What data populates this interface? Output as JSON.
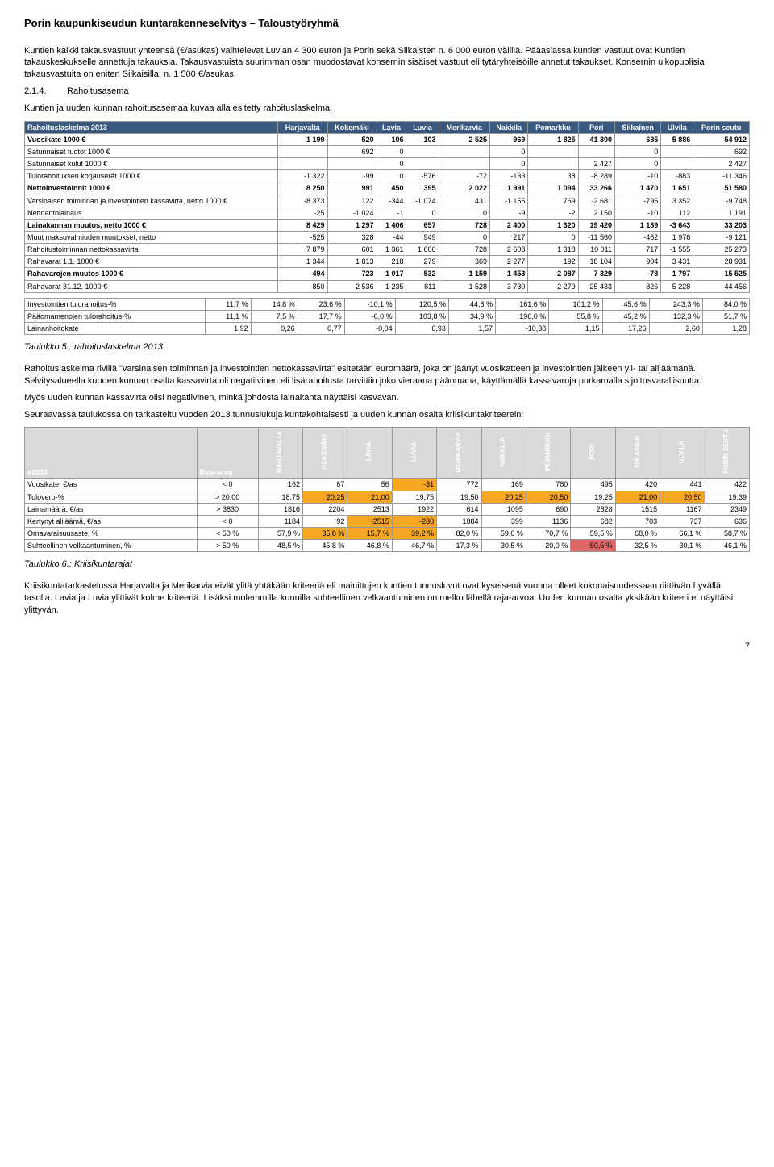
{
  "docTitle": "Porin kaupunkiseudun kuntarakenneselvitys – Taloustyöryhmä",
  "intro1": "Kuntien kaikki takausvastuut yhteensä (€/asukas) vaihtelevat Luvian 4 300 euron ja Porin sekä Siikaisten n. 6 000 euron välillä. Pääasiassa kuntien vastuut ovat Kuntien takauskeskukselle annettuja takauksia. Takausvastuista suurimman osan muodostavat konsernin sisäiset vastuut eli tytäryhteisöille annetut takaukset. Konsernin ulkopuolisia takausvastuita on eniten Siikaisilla, n. 1 500 €/asukas.",
  "sectionNum": "2.1.4.",
  "sectionTitle": "Rahoitusasema",
  "intro2": "Kuntien ja uuden kunnan rahoitusasemaa kuvaa alla esitetty rahoituslaskelma.",
  "table1": {
    "headers": [
      "Rahoituslaskelma 2013",
      "Harjavalta",
      "Kokemäki",
      "Lavia",
      "Luvia",
      "Merikarvia",
      "Nakkila",
      "Pomarkku",
      "Pori",
      "Siikainen",
      "Ulvila",
      "Porin seutu"
    ],
    "rows": [
      {
        "label": "Vuosikate 1000 €",
        "cells": [
          "1 199",
          "520",
          "106",
          "-103",
          "2 525",
          "969",
          "1 825",
          "41 300",
          "685",
          "5 886",
          "54 912"
        ],
        "bold": true
      },
      {
        "label": "Satunnaiset tuotot 1000 €",
        "cells": [
          "",
          "692",
          "0",
          "",
          "",
          "0",
          "",
          "",
          "0",
          "",
          "692"
        ]
      },
      {
        "label": "Satunnaiset kulut 1000 €",
        "cells": [
          "",
          "",
          "0",
          "",
          "",
          "0",
          "",
          "2 427",
          "0",
          "",
          "2 427"
        ]
      },
      {
        "label": "Tulorahoituksen korjauserät 1000 €",
        "cells": [
          "-1 322",
          "-99",
          "0",
          "-576",
          "-72",
          "-133",
          "38",
          "-8 289",
          "-10",
          "-883",
          "-11 346"
        ]
      },
      {
        "label": "Nettoinvestoinnit 1000 €",
        "cells": [
          "8 250",
          "991",
          "450",
          "395",
          "2 022",
          "1 991",
          "1 094",
          "33 266",
          "1 470",
          "1 651",
          "51 580"
        ],
        "bold": true
      },
      {
        "label": "Varsinaisen toiminnan ja investointien kassavirta, netto 1000 €",
        "cells": [
          "-8 373",
          "122",
          "-344",
          "-1 074",
          "431",
          "-1 155",
          "769",
          "-2 681",
          "-795",
          "3 352",
          "-9 748"
        ]
      },
      {
        "label": "Nettoantolainaus",
        "cells": [
          "-25",
          "-1 024",
          "-1",
          "0",
          "0",
          "-9",
          "-2",
          "2 150",
          "-10",
          "112",
          "1 191"
        ]
      },
      {
        "label": "Lainakannan muutos, netto 1000 €",
        "cells": [
          "8 429",
          "1 297",
          "1 406",
          "657",
          "728",
          "2 400",
          "1 320",
          "19 420",
          "1 189",
          "-3 643",
          "33 203"
        ],
        "bold": true
      },
      {
        "label": "Muut maksuvalmiuden muutokset, netto",
        "cells": [
          "-525",
          "328",
          "-44",
          "949",
          "0",
          "217",
          "0",
          "-11 560",
          "-462",
          "1 976",
          "-9 121"
        ]
      },
      {
        "label": "Rahoitustoiminnan nettokassavirta",
        "cells": [
          "7 879",
          "601",
          "1 361",
          "1 606",
          "728",
          "2 608",
          "1 318",
          "10 011",
          "717",
          "-1 555",
          "25 273"
        ]
      },
      {
        "label": "Rahavarat 1.1. 1000 €",
        "cells": [
          "1 344",
          "1 813",
          "218",
          "279",
          "369",
          "2 277",
          "192",
          "18 104",
          "904",
          "3 431",
          "28 931"
        ]
      },
      {
        "label": "Rahavarojen muutos 1000 €",
        "cells": [
          "-494",
          "723",
          "1 017",
          "532",
          "1 159",
          "1 453",
          "2 087",
          "7 329",
          "-78",
          "1 797",
          "15 525"
        ],
        "bold": true
      },
      {
        "label": "Rahavarat 31.12. 1000 €",
        "cells": [
          "850",
          "2 536",
          "1 235",
          "811",
          "1 528",
          "3 730",
          "2 279",
          "25 433",
          "826",
          "5 228",
          "44 456"
        ]
      }
    ],
    "rows2": [
      {
        "label": "Investointien tulorahoitus-%",
        "cells": [
          "11,7 %",
          "14,8 %",
          "23,6 %",
          "-10,1 %",
          "120,5 %",
          "44,8 %",
          "161,6 %",
          "101,2 %",
          "45,6 %",
          "243,3 %",
          "84,0 %"
        ]
      },
      {
        "label": "Pääomamenojen tulorahoitus-%",
        "cells": [
          "11,1 %",
          "7,5 %",
          "17,7 %",
          "-6,0 %",
          "103,8 %",
          "34,9 %",
          "196,0 %",
          "55,8 %",
          "45,2 %",
          "132,3 %",
          "51,7 %"
        ]
      },
      {
        "label": "Lainanhoitokate",
        "cells": [
          "1,92",
          "0,26",
          "0,77",
          "-0,04",
          "6,93",
          "1,57",
          "-10,38",
          "1,15",
          "17,26",
          "2,60",
          "1,28"
        ]
      }
    ]
  },
  "caption1": "Taulukko 5.: rahoituslaskelma 2013",
  "para2": "Rahoituslaskelma rivillä \"varsinaisen toiminnan ja investointien nettokassavirta\" esitetään euromäärä, joka on jäänyt vuosikatteen ja investointien jälkeen yli- tai alijäämänä. Selvitysalueella kuuden kunnan osalta kassavirta oli negatiivinen eli lisärahoitusta tarvittiin joko vieraana pääomana, käyttämällä kassavaroja purkamalla sijoitusvarallisuutta.",
  "para3": "Myös uuden kunnan kassavirta olisi negatiivinen, minkä johdosta lainakanta näyttäisi kasvavan.",
  "para4": "Seuraavassa taulukossa on tarkasteltu vuoden 2013 tunnuslukuja kuntakohtaisesti ja uuden kunnan osalta kriisikuntakriteerein:",
  "table2": {
    "colHeads": [
      "e2013",
      "Raja-arvo",
      "HARJAVALTA",
      "KOKEMÄKI",
      "LAVIA",
      "LUVIA",
      "MERIKARVIA",
      "NAKKILA",
      "POMARKKU",
      "PORI",
      "SIIKAINEN",
      "ULVILA",
      "PORIN SEUTU"
    ],
    "rows": [
      {
        "label": "Vuosikate, €/as",
        "raja": "< 0",
        "cells": [
          {
            "v": "162"
          },
          {
            "v": "67"
          },
          {
            "v": "56"
          },
          {
            "v": "-31",
            "h": "hl-orange"
          },
          {
            "v": "772"
          },
          {
            "v": "169"
          },
          {
            "v": "780"
          },
          {
            "v": "495"
          },
          {
            "v": "420"
          },
          {
            "v": "441"
          },
          {
            "v": "422"
          }
        ]
      },
      {
        "label": "Tulovero-%",
        "raja": "> 20,00",
        "cells": [
          {
            "v": "18,75"
          },
          {
            "v": "20,25",
            "h": "hl-orange"
          },
          {
            "v": "21,00",
            "h": "hl-orange"
          },
          {
            "v": "19,75"
          },
          {
            "v": "19,50"
          },
          {
            "v": "20,25",
            "h": "hl-orange"
          },
          {
            "v": "20,50",
            "h": "hl-orange"
          },
          {
            "v": "19,25"
          },
          {
            "v": "21,00",
            "h": "hl-orange"
          },
          {
            "v": "20,50",
            "h": "hl-orange"
          },
          {
            "v": "19,39"
          }
        ]
      },
      {
        "label": "Lainamäärä, €/as",
        "raja": "> 3830",
        "cells": [
          {
            "v": "1816"
          },
          {
            "v": "2204"
          },
          {
            "v": "2513"
          },
          {
            "v": "1922"
          },
          {
            "v": "614"
          },
          {
            "v": "1095"
          },
          {
            "v": "690"
          },
          {
            "v": "2828"
          },
          {
            "v": "1515"
          },
          {
            "v": "1167"
          },
          {
            "v": "2349"
          }
        ]
      },
      {
        "label": "Kertynyt alijäämä, €/as",
        "raja": "< 0",
        "cells": [
          {
            "v": "1184"
          },
          {
            "v": "92"
          },
          {
            "v": "-2515",
            "h": "hl-orange"
          },
          {
            "v": "-280",
            "h": "hl-orange"
          },
          {
            "v": "1884"
          },
          {
            "v": "399"
          },
          {
            "v": "1136"
          },
          {
            "v": "682"
          },
          {
            "v": "703"
          },
          {
            "v": "737"
          },
          {
            "v": "636"
          }
        ]
      },
      {
        "label": "Omavaraisuusaste, %",
        "raja": "< 50 %",
        "cells": [
          {
            "v": "57,9 %"
          },
          {
            "v": "35,8 %",
            "h": "hl-orange"
          },
          {
            "v": "15,7 %",
            "h": "hl-orange"
          },
          {
            "v": "39,2 %",
            "h": "hl-orange"
          },
          {
            "v": "82,0 %"
          },
          {
            "v": "59,0 %"
          },
          {
            "v": "70,7 %"
          },
          {
            "v": "59,5 %"
          },
          {
            "v": "68,0 %"
          },
          {
            "v": "66,1 %"
          },
          {
            "v": "58,7 %"
          }
        ]
      },
      {
        "label": "Suhteellinen velkaantuminen, %",
        "raja": "> 50 %",
        "cells": [
          {
            "v": "48,5 %"
          },
          {
            "v": "45,8 %"
          },
          {
            "v": "46,8 %"
          },
          {
            "v": "46,7 %"
          },
          {
            "v": "17,3 %"
          },
          {
            "v": "30,5 %"
          },
          {
            "v": "20,0 %"
          },
          {
            "v": "50,5 %",
            "h": "hl-red"
          },
          {
            "v": "32,5 %"
          },
          {
            "v": "30,1 %"
          },
          {
            "v": "46,1 %"
          }
        ]
      }
    ]
  },
  "caption2": "Taulukko 6.: Kriisikuntarajat",
  "para5": "Kriisikuntatarkastelussa Harjavalta ja Merikarvia eivät ylitä yhtäkään kriteeriä eli mainittujen kuntien tunnusluvut ovat kyseisenä vuonna olleet kokonaisuudessaan riittävän hyvällä tasolla. Lavia ja Luvia ylittivät kolme kriteeriä. Lisäksi molemmilla kunnilla suhteellinen velkaantuminen on melko lähellä raja-arvoa. Uuden kunnan osalta yksikään kriteeri ei näyttäisi ylittyvän.",
  "pageNum": "7"
}
